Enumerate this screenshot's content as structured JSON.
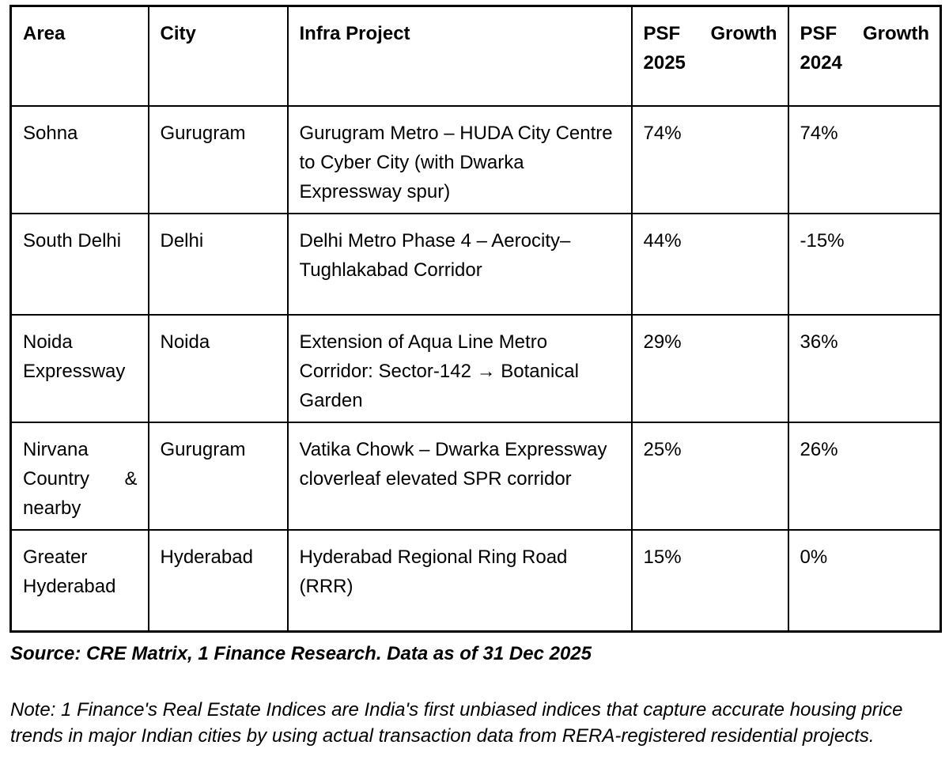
{
  "table": {
    "columns": [
      {
        "id": "area",
        "label": "Area"
      },
      {
        "id": "city",
        "label": "City"
      },
      {
        "id": "infra_project",
        "label": "Infra Project"
      },
      {
        "id": "psf_growth_2025",
        "label": "PSF Growth 2025"
      },
      {
        "id": "psf_growth_2024",
        "label": "PSF Growth 2024"
      }
    ],
    "rows": [
      {
        "area": "Sohna",
        "city": "Gurugram",
        "infra_project": "Gurugram Metro – HUDA City Centre to Cyber City (with Dwarka Expressway spur)",
        "psf_growth_2025": "74%",
        "psf_growth_2024": "74%"
      },
      {
        "area": "South Delhi",
        "city": "Delhi",
        "infra_project": "Delhi Metro Phase 4 – Aerocity–Tughlakabad Corridor",
        "psf_growth_2025": "44%",
        "psf_growth_2024": "-15%"
      },
      {
        "area": "Noida Expressway",
        "city": "Noida",
        "infra_project": "Extension of Aqua Line Metro Corridor: Sector-142 → Botanical Garden",
        "psf_growth_2025": "29%",
        "psf_growth_2024": "36%"
      },
      {
        "area": "Nirvana Country & nearby",
        "city": "Gurugram",
        "infra_project": "Vatika Chowk – Dwarka Expressway cloverleaf elevated SPR corridor",
        "psf_growth_2025": "25%",
        "psf_growth_2024": "26%"
      },
      {
        "area": "Greater Hyderabad",
        "city": "Hyderabad",
        "infra_project": "Hyderabad Regional Ring Road (RRR)",
        "psf_growth_2025": "15%",
        "psf_growth_2024": "0%"
      }
    ]
  },
  "footer": {
    "source": "Source: CRE Matrix, 1 Finance Research. Data as of 31 Dec 2025",
    "note": "Note: 1 Finance's Real Estate Indices are India's first unbiased indices that capture accurate housing price trends in major Indian cities by using actual transaction data from RERA-registered residential projects."
  },
  "colors": {
    "text": "#000000",
    "border": "#000000",
    "background": "#ffffff"
  }
}
